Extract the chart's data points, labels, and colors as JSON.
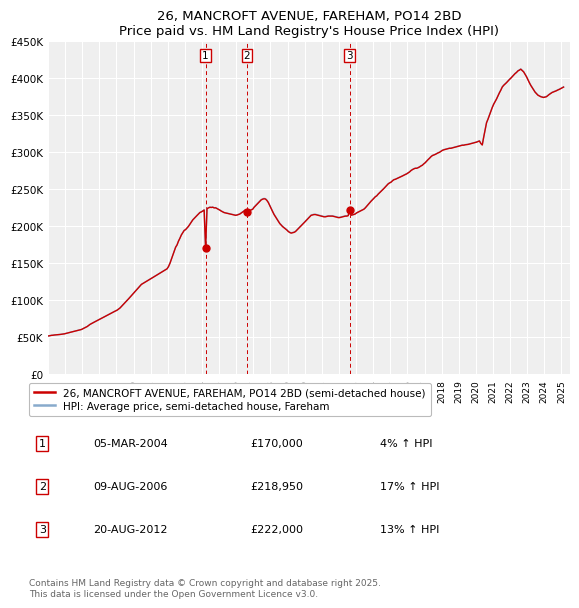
{
  "title": "26, MANCROFT AVENUE, FAREHAM, PO14 2BD",
  "subtitle": "Price paid vs. HM Land Registry's House Price Index (HPI)",
  "ylim": [
    0,
    450000
  ],
  "yticks": [
    0,
    50000,
    100000,
    150000,
    200000,
    250000,
    300000,
    350000,
    400000,
    450000
  ],
  "ytick_labels": [
    "£0",
    "£50K",
    "£100K",
    "£150K",
    "£200K",
    "£250K",
    "£300K",
    "£350K",
    "£400K",
    "£450K"
  ],
  "background_color": "#ffffff",
  "plot_bg_color": "#efefef",
  "grid_color": "#ffffff",
  "line_color_red": "#cc0000",
  "line_color_blue": "#88aacc",
  "transaction_color": "#cc0000",
  "legend_label_red": "26, MANCROFT AVENUE, FAREHAM, PO14 2BD (semi-detached house)",
  "legend_label_blue": "HPI: Average price, semi-detached house, Fareham",
  "transactions": [
    {
      "label": "1",
      "date_idx": 110,
      "price": 170000
    },
    {
      "label": "2",
      "date_idx": 139,
      "price": 218950
    },
    {
      "label": "3",
      "date_idx": 211,
      "price": 222000
    }
  ],
  "table_rows": [
    [
      "1",
      "05-MAR-2004",
      "£170,000",
      "4% ↑ HPI"
    ],
    [
      "2",
      "09-AUG-2006",
      "£218,950",
      "17% ↑ HPI"
    ],
    [
      "3",
      "20-AUG-2012",
      "£222,000",
      "13% ↑ HPI"
    ]
  ],
  "footer": "Contains HM Land Registry data © Crown copyright and database right 2025.\nThis data is licensed under the Open Government Licence v3.0.",
  "xlim_start": 1995.0,
  "xlim_end": 2025.5,
  "xtick_years": [
    1995,
    1996,
    1997,
    1998,
    1999,
    2000,
    2001,
    2002,
    2003,
    2004,
    2005,
    2006,
    2007,
    2008,
    2009,
    2010,
    2011,
    2012,
    2013,
    2014,
    2015,
    2016,
    2017,
    2018,
    2019,
    2020,
    2021,
    2022,
    2023,
    2024,
    2025
  ],
  "hpi_index": [
    100.0,
    100.8,
    101.5,
    101.8,
    102.4,
    102.7,
    103.0,
    103.4,
    103.8,
    104.3,
    104.7,
    105.4,
    106.4,
    107.3,
    108.2,
    109.2,
    110.2,
    111.1,
    112.1,
    113.0,
    113.9,
    114.9,
    115.8,
    116.8,
    118.7,
    120.5,
    122.4,
    124.4,
    127.2,
    130.0,
    132.1,
    134.1,
    136.0,
    137.9,
    139.8,
    141.8,
    143.8,
    145.7,
    147.7,
    149.6,
    151.6,
    153.5,
    155.5,
    157.4,
    159.4,
    161.3,
    163.3,
    165.2,
    167.0,
    169.8,
    172.6,
    176.5,
    180.4,
    184.3,
    188.2,
    192.3,
    196.4,
    200.5,
    204.6,
    208.7,
    212.9,
    217.1,
    221.3,
    225.5,
    229.7,
    233.9,
    236.1,
    238.4,
    240.6,
    242.8,
    245.0,
    247.3,
    249.5,
    251.8,
    254.1,
    256.3,
    258.6,
    260.8,
    263.1,
    265.3,
    267.6,
    269.9,
    272.1,
    274.4,
    280.2,
    288.5,
    299.0,
    309.5,
    320.0,
    330.5,
    336.5,
    346.3,
    353.8,
    362.3,
    368.2,
    374.1,
    376.3,
    380.7,
    384.7,
    390.5,
    395.8,
    401.4,
    405.4,
    409.4,
    413.0,
    416.6,
    420.6,
    422.3,
    424.5,
    427.3,
    327.3,
    430.7,
    432.7,
    434.3,
    433.8,
    434.5,
    432.7,
    433.0,
    431.0,
    429.2,
    426.9,
    424.4,
    422.3,
    420.5,
    419.6,
    418.8,
    417.9,
    417.0,
    416.1,
    415.3,
    414.4,
    413.5,
    414.1,
    415.5,
    416.8,
    419.5,
    422.4,
    424.7,
    427.2,
    422.0,
    424.0,
    426.0,
    428.0,
    429.5,
    434.6,
    438.5,
    442.5,
    446.0,
    450.0,
    454.0,
    455.8,
    457.0,
    456.2,
    452.5,
    447.0,
    439.0,
    431.0,
    423.5,
    416.0,
    410.0,
    404.0,
    398.5,
    392.5,
    388.5,
    384.5,
    381.5,
    378.5,
    375.5,
    371.7,
    369.2,
    367.6,
    368.5,
    369.5,
    371.5,
    375.4,
    379.3,
    383.0,
    386.7,
    390.4,
    394.1,
    398.1,
    402.2,
    406.0,
    409.9,
    413.8,
    414.8,
    415.8,
    415.8,
    414.8,
    413.8,
    412.9,
    412.0,
    410.9,
    410.0,
    410.0,
    410.9,
    411.8,
    411.8,
    411.8,
    411.8,
    410.9,
    410.0,
    409.0,
    407.9,
    407.9,
    408.9,
    410.0,
    411.0,
    411.8,
    411.8,
    412.9,
    427.3,
    413.5,
    414.5,
    415.5,
    417.0,
    419.8,
    421.7,
    423.5,
    425.4,
    427.3,
    429.2,
    432.7,
    437.0,
    441.3,
    445.6,
    449.9,
    453.5,
    457.5,
    461.5,
    463.9,
    468.3,
    471.9,
    475.5,
    479.2,
    482.9,
    487.0,
    491.0,
    494.9,
    497.5,
    499.3,
    502.9,
    505.8,
    506.8,
    508.5,
    510.5,
    512.0,
    513.5,
    515.5,
    517.5,
    519.3,
    521.0,
    523.5,
    526.0,
    529.5,
    532.0,
    534.0,
    535.5,
    535.5,
    537.0,
    539.0,
    541.5,
    543.5,
    547.0,
    550.0,
    554.0,
    558.0,
    561.5,
    565.5,
    568.5,
    570.0,
    571.5,
    573.5,
    575.5,
    577.0,
    579.5,
    582.0,
    583.5,
    584.5,
    585.5,
    586.5,
    587.5,
    587.5,
    588.5,
    589.5,
    590.5,
    591.5,
    592.5,
    593.5,
    594.5,
    595.5,
    595.5,
    596.5,
    597.0,
    597.5,
    598.5,
    599.5,
    600.5,
    601.5,
    602.5,
    603.5,
    605.0,
    606.5,
    600.0,
    596.0,
    616.5,
    635.0,
    654.0,
    663.0,
    673.0,
    683.5,
    693.5,
    702.0,
    708.5,
    715.5,
    723.5,
    731.5,
    738.5,
    746.5,
    751.0,
    754.5,
    758.0,
    762.0,
    766.0,
    769.5,
    773.5,
    777.5,
    781.5,
    784.5,
    788.5,
    790.5,
    793.0,
    789.5,
    786.0,
    779.5,
    773.5,
    765.5,
    758.0,
    751.0,
    745.0,
    739.5,
    733.5,
    729.5,
    725.5,
    723.5,
    721.5,
    720.5,
    719.5,
    720.5,
    721.5,
    724.5,
    727.5,
    730.0,
    732.5,
    734.0,
    735.5,
    737.0,
    739.0,
    740.5,
    742.5,
    744.5,
    746.5
  ]
}
